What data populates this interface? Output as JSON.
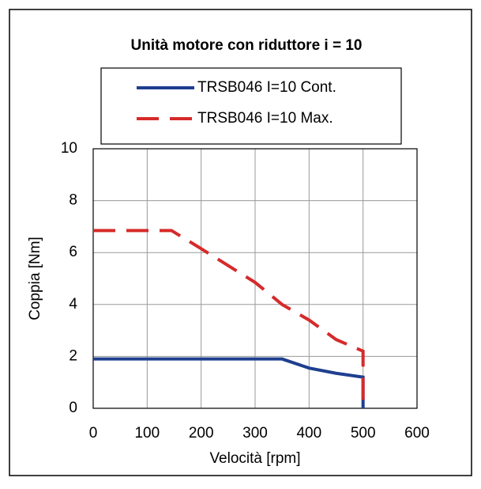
{
  "chart_data": {
    "type": "line",
    "title": "Unità motore con riduttore i = 10",
    "xlabel": "Velocità [rpm]",
    "ylabel": "Coppia [Nm]",
    "series": [
      {
        "name": "TRSB046 I=10 Cont.",
        "color": "#1f3f8f",
        "dash": false,
        "x": [
          0,
          350,
          400,
          450,
          500,
          500
        ],
        "values": [
          1.9,
          1.9,
          1.55,
          1.35,
          1.2,
          0
        ]
      },
      {
        "name": "TRSB046 I=10 Max.",
        "color": "#d62a2a",
        "dash": true,
        "x": [
          0,
          145,
          200,
          300,
          350,
          400,
          450,
          500,
          500
        ],
        "values": [
          6.85,
          6.85,
          6.15,
          4.85,
          4.0,
          3.4,
          2.65,
          2.2,
          0
        ]
      }
    ],
    "xlim": [
      0,
      600
    ],
    "xticks": [
      0,
      100,
      200,
      300,
      400,
      500,
      600
    ],
    "ylim": [
      0,
      10
    ],
    "yticks": [
      0,
      2,
      4,
      6,
      8,
      10
    ],
    "grid": true
  }
}
